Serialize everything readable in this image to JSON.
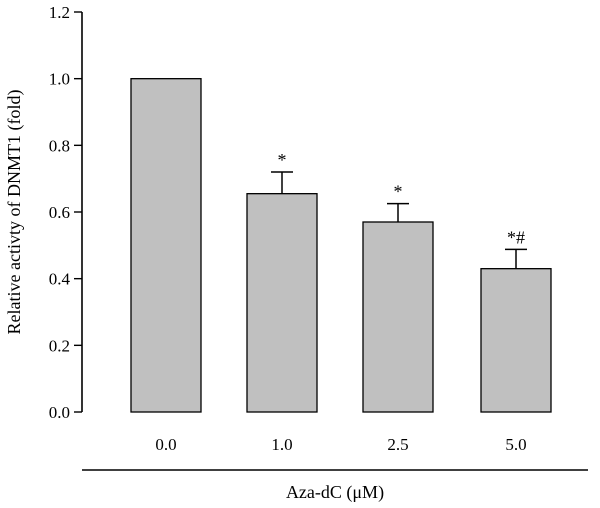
{
  "chart_data": {
    "type": "bar",
    "categories": [
      "0.0",
      "1.0",
      "2.5",
      "5.0"
    ],
    "values": [
      1.0,
      0.655,
      0.57,
      0.43
    ],
    "errors": [
      0.0,
      0.065,
      0.055,
      0.058
    ],
    "annotations": [
      "",
      "*",
      "*",
      "*#"
    ],
    "ylabel": "Relative activty of DNMT1 (fold)",
    "xlabel": "Aza-dC (μM)",
    "ylim": [
      0,
      1.2
    ],
    "yticks": [
      "0.0",
      "0.2",
      "0.4",
      "0.6",
      "0.8",
      "1.0",
      "1.2"
    ],
    "bar_color": "#c0c0c0",
    "grid": false
  }
}
